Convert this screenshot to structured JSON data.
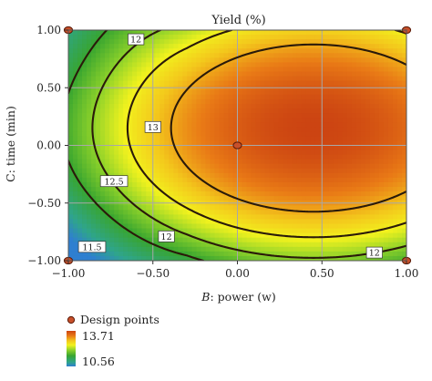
{
  "chart_data": {
    "type": "heatmap",
    "subtype": "contour",
    "title": "Yield (%)",
    "xlabel_factor": "B",
    "xlabel_rest": ": power (w)",
    "ylabel": "C: time (min)",
    "xlim": [
      -1,
      1
    ],
    "ylim": [
      -1,
      1
    ],
    "xticks": [
      {
        "value": -1,
        "label": "−1.00"
      },
      {
        "value": -0.5,
        "label": "−0.50"
      },
      {
        "value": 0,
        "label": "0.00"
      },
      {
        "value": 0.5,
        "label": "0.50"
      },
      {
        "value": 1,
        "label": "1.00"
      }
    ],
    "yticks": [
      {
        "value": 1,
        "label": "1.00"
      },
      {
        "value": 0.5,
        "label": "0.50"
      },
      {
        "value": 0,
        "label": "0.00"
      },
      {
        "value": -0.5,
        "label": "−0.50"
      },
      {
        "value": -1,
        "label": "−1.00"
      }
    ],
    "grid": true,
    "response_model": {
      "x_optimum": 0.45,
      "y_optimum": 0.15,
      "max_value": 13.71,
      "x_curvature": 2.0,
      "y_curvature": 1.35,
      "edge_rise_left": 0.55,
      "edge_y_power": 4
    },
    "color_range": {
      "min": 10.56,
      "max": 13.71
    },
    "color_stops": [
      {
        "t": 0.0,
        "color": "#2f7fd0"
      },
      {
        "t": 0.12,
        "color": "#2fa58a"
      },
      {
        "t": 0.3,
        "color": "#38a530"
      },
      {
        "t": 0.46,
        "color": "#8ed22a"
      },
      {
        "t": 0.6,
        "color": "#f2f21e"
      },
      {
        "t": 0.72,
        "color": "#f3c81c"
      },
      {
        "t": 0.86,
        "color": "#e97a16"
      },
      {
        "t": 1.0,
        "color": "#cc4412"
      }
    ],
    "contours": [
      {
        "level": 11.5,
        "label": "11.5",
        "label_at": {
          "x": -0.86,
          "y": -0.88
        }
      },
      {
        "level": 12,
        "label": "12",
        "label_at": {
          "x": -0.6,
          "y": 0.92
        }
      },
      {
        "level": 12,
        "label": "12",
        "label_at": {
          "x": -0.42,
          "y": -0.79
        }
      },
      {
        "level": 12,
        "label": "12",
        "label_at": {
          "x": 0.81,
          "y": -0.93
        }
      },
      {
        "level": 12.5,
        "label": "12.5",
        "label_at": {
          "x": -0.73,
          "y": -0.31
        }
      },
      {
        "level": 13,
        "label": "13",
        "label_at": {
          "x": -0.5,
          "y": 0.16
        }
      }
    ],
    "design_points": [
      {
        "x": -1,
        "y": 1
      },
      {
        "x": 1,
        "y": 1
      },
      {
        "x": 0,
        "y": 0
      },
      {
        "x": -1,
        "y": -1
      },
      {
        "x": 1,
        "y": -1
      }
    ],
    "legend": {
      "points_label": "Design points",
      "max_label": "13.71",
      "min_label": "10.56"
    },
    "colors": {
      "design_point_fill": "#c8502a",
      "design_point_stroke": "#5a1a08",
      "contour": "#2a1a0a",
      "grid": "#a8a8a8"
    }
  }
}
